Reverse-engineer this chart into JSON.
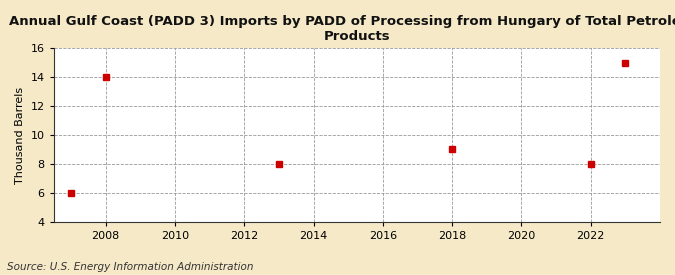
{
  "title": "Annual Gulf Coast (PADD 3) Imports by PADD of Processing from Hungary of Total Petroleum\nProducts",
  "ylabel": "Thousand Barrels",
  "source": "Source: U.S. Energy Information Administration",
  "outer_background_color": "#f5e9c8",
  "plot_background_color": "#ffffff",
  "data_x": [
    2007,
    2008,
    2013,
    2018,
    2022,
    2023
  ],
  "data_y": [
    6,
    14,
    8,
    9,
    8,
    15
  ],
  "marker_color": "#cc0000",
  "marker_style": "s",
  "marker_size": 4,
  "xlim": [
    2006.5,
    2024
  ],
  "ylim": [
    4,
    16
  ],
  "yticks": [
    4,
    6,
    8,
    10,
    12,
    14,
    16
  ],
  "xticks": [
    2008,
    2010,
    2012,
    2014,
    2016,
    2018,
    2020,
    2022
  ],
  "grid_color": "#999999",
  "grid_linestyle": "--",
  "grid_linewidth": 0.6,
  "title_fontsize": 9.5,
  "axis_label_fontsize": 8,
  "tick_fontsize": 8,
  "source_fontsize": 7.5
}
